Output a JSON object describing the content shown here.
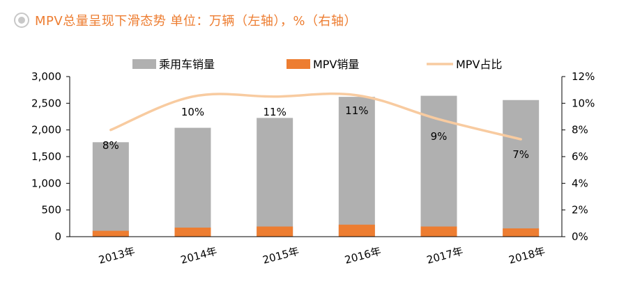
{
  "title": "MPV总量呈现下滑态势   单位：万辆（左轴），%（右轴）",
  "colors": {
    "title": "#ED7D31",
    "passenger_bar": "#B0B0B0",
    "mpv_bar": "#ED7D31",
    "share_line": "#F8CBA0",
    "axis": "#000000"
  },
  "chart_data": {
    "type": "bar",
    "categories": [
      "2013年",
      "2014年",
      "2015年",
      "2016年",
      "2017年",
      "2018年"
    ],
    "series": [
      {
        "name": "乘用车销量",
        "type": "bar",
        "axis": "left",
        "values": [
          1770,
          2040,
          2225,
          2620,
          2640,
          2560
        ]
      },
      {
        "name": "MPV销量",
        "type": "bar",
        "axis": "left",
        "values": [
          110,
          170,
          190,
          225,
          190,
          155
        ]
      },
      {
        "name": "MPV占比",
        "type": "line",
        "axis": "right",
        "values": [
          8.0,
          10.5,
          10.5,
          10.6,
          8.8,
          7.3
        ]
      }
    ],
    "data_labels": [
      "8%",
      "10%",
      "11%",
      "11%",
      "9%",
      "7%"
    ],
    "left_axis": {
      "ylim": [
        0,
        3000
      ],
      "ticks": [
        0,
        500,
        1000,
        1500,
        2000,
        2500,
        3000
      ],
      "tick_labels": [
        "0",
        "500",
        "1,000",
        "1,500",
        "2,000",
        "2,500",
        "3,000"
      ]
    },
    "right_axis": {
      "ylim": [
        0,
        12
      ],
      "ticks": [
        0,
        2,
        4,
        6,
        8,
        10,
        12
      ],
      "tick_labels": [
        "0%",
        "2%",
        "4%",
        "6%",
        "8%",
        "10%",
        "12%"
      ]
    },
    "legend": {
      "placement": "top",
      "entries": [
        "乘用车销量",
        "MPV销量",
        "MPV占比"
      ]
    },
    "grid": false
  }
}
